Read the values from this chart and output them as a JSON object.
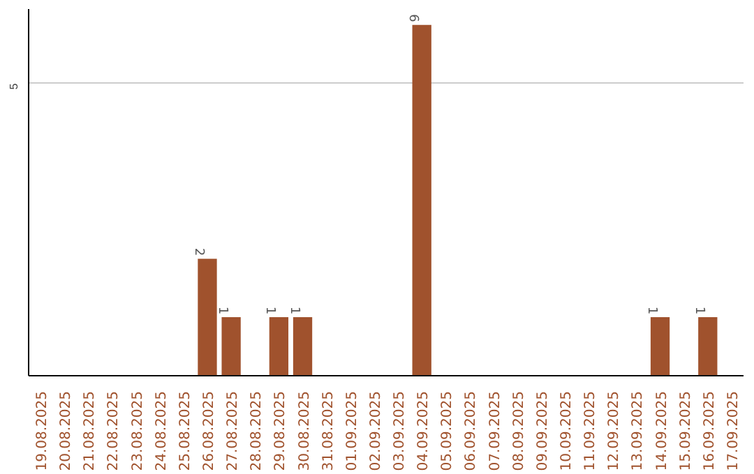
{
  "chart_data": {
    "type": "bar",
    "categories": [
      "19.08.2025",
      "20.08.2025",
      "21.08.2025",
      "22.08.2025",
      "23.08.2025",
      "24.08.2025",
      "25.08.2025",
      "26.08.2025",
      "27.08.2025",
      "28.08.2025",
      "29.08.2025",
      "30.08.2025",
      "31.08.2025",
      "01.09.2025",
      "02.09.2025",
      "03.09.2025",
      "04.09.2025",
      "05.09.2025",
      "06.09.2025",
      "07.09.2025",
      "08.09.2025",
      "09.09.2025",
      "10.09.2025",
      "11.09.2025",
      "12.09.2025",
      "13.09.2025",
      "14.09.2025",
      "15.09.2025",
      "16.09.2025",
      "17.09.2025"
    ],
    "values": [
      0,
      0,
      0,
      0,
      0,
      0,
      0,
      2,
      1,
      0,
      1,
      1,
      0,
      0,
      0,
      0,
      6,
      0,
      0,
      0,
      0,
      0,
      0,
      0,
      0,
      0,
      1,
      0,
      1,
      0
    ],
    "value_labels": [
      null,
      null,
      null,
      null,
      null,
      null,
      null,
      "2",
      "1",
      null,
      "1",
      "1",
      null,
      null,
      null,
      null,
      "6",
      null,
      null,
      null,
      null,
      null,
      null,
      null,
      null,
      null,
      "1",
      null,
      "1",
      null
    ],
    "color": "#a0522d",
    "ylim": [
      0,
      6.27
    ],
    "yticks": [
      5
    ],
    "grid": "y"
  }
}
